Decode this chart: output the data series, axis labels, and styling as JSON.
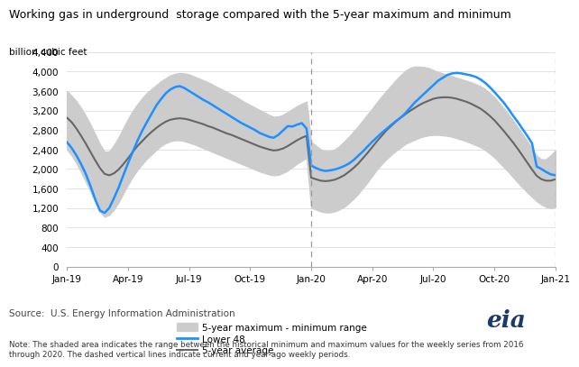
{
  "title": "Working gas in underground  storage compared with the 5-year maximum and minimum",
  "ylabel": "billion cubic feet",
  "source_text": "Source:  U.S. Energy Information Administration",
  "note_text": "Note: The shaded area indicates the range between the historical minimum and maximum values for the weekly series from 2016\nthrough 2020. The dashed vertical lines indicate current and year-ago weekly periods.",
  "ylim": [
    0,
    4400
  ],
  "yticks": [
    0,
    400,
    800,
    1200,
    1600,
    2000,
    2400,
    2800,
    3200,
    3600,
    4000,
    4400
  ],
  "x_labels": [
    "Jan-19",
    "Apr-19",
    "Jul-19",
    "Oct-19",
    "Jan-20",
    "Apr-20",
    "Jul-20",
    "Oct-20",
    "Jan-21"
  ],
  "x_tick_positions": [
    0,
    13,
    26,
    39,
    52,
    65,
    78,
    91,
    104
  ],
  "dashed_vlines_x": [
    52,
    104
  ],
  "shaded_color": "#cccccc",
  "lower48_color": "#1e90ff",
  "avg5yr_color": "#666666",
  "n_points": 105,
  "lower48": [
    2550,
    2430,
    2280,
    2100,
    1900,
    1650,
    1380,
    1150,
    1100,
    1200,
    1400,
    1620,
    1870,
    2120,
    2350,
    2580,
    2780,
    2960,
    3130,
    3300,
    3430,
    3550,
    3630,
    3680,
    3700,
    3660,
    3600,
    3540,
    3480,
    3420,
    3370,
    3310,
    3250,
    3190,
    3130,
    3070,
    3010,
    2950,
    2900,
    2850,
    2800,
    2740,
    2700,
    2660,
    2640,
    2700,
    2790,
    2880,
    2870,
    2910,
    2940,
    2830,
    2070,
    2020,
    1980,
    1960,
    1970,
    1990,
    2020,
    2060,
    2110,
    2180,
    2270,
    2360,
    2460,
    2560,
    2650,
    2740,
    2820,
    2900,
    2980,
    3050,
    3140,
    3250,
    3360,
    3450,
    3540,
    3630,
    3720,
    3810,
    3870,
    3930,
    3960,
    3970,
    3960,
    3940,
    3920,
    3890,
    3840,
    3770,
    3680,
    3580,
    3470,
    3360,
    3230,
    3090,
    2960,
    2820,
    2680,
    2530,
    2050,
    2000,
    1940,
    1890,
    1870
  ],
  "avg5yr": [
    3050,
    2960,
    2830,
    2680,
    2520,
    2350,
    2180,
    2020,
    1900,
    1870,
    1910,
    1990,
    2100,
    2220,
    2350,
    2470,
    2570,
    2670,
    2760,
    2840,
    2910,
    2970,
    3010,
    3030,
    3040,
    3030,
    3010,
    2980,
    2950,
    2920,
    2880,
    2850,
    2810,
    2770,
    2730,
    2700,
    2660,
    2620,
    2580,
    2540,
    2500,
    2460,
    2430,
    2400,
    2380,
    2390,
    2420,
    2470,
    2530,
    2590,
    2640,
    2680,
    1820,
    1790,
    1760,
    1750,
    1760,
    1780,
    1820,
    1870,
    1940,
    2020,
    2110,
    2220,
    2330,
    2450,
    2570,
    2680,
    2790,
    2880,
    2970,
    3050,
    3120,
    3190,
    3250,
    3310,
    3360,
    3400,
    3440,
    3460,
    3470,
    3470,
    3460,
    3440,
    3410,
    3380,
    3340,
    3290,
    3240,
    3170,
    3090,
    3000,
    2890,
    2780,
    2660,
    2540,
    2410,
    2270,
    2130,
    1990,
    1860,
    1790,
    1760,
    1760,
    1790
  ],
  "range_max": [
    3600,
    3500,
    3390,
    3250,
    3090,
    2910,
    2710,
    2510,
    2350,
    2360,
    2490,
    2650,
    2840,
    3030,
    3190,
    3330,
    3450,
    3560,
    3640,
    3720,
    3800,
    3860,
    3920,
    3950,
    3970,
    3960,
    3940,
    3900,
    3860,
    3820,
    3780,
    3730,
    3680,
    3630,
    3580,
    3530,
    3480,
    3420,
    3360,
    3310,
    3260,
    3210,
    3160,
    3110,
    3070,
    3080,
    3110,
    3170,
    3230,
    3290,
    3340,
    3380,
    2550,
    2480,
    2400,
    2370,
    2370,
    2400,
    2470,
    2560,
    2660,
    2770,
    2880,
    3000,
    3120,
    3240,
    3370,
    3490,
    3600,
    3710,
    3820,
    3920,
    4010,
    4070,
    4100,
    4100,
    4090,
    4070,
    4030,
    3990,
    3960,
    3930,
    3900,
    3870,
    3840,
    3810,
    3780,
    3740,
    3700,
    3640,
    3560,
    3470,
    3360,
    3240,
    3120,
    2990,
    2850,
    2710,
    2570,
    2420,
    2270,
    2200,
    2200,
    2280,
    2380
  ],
  "range_min": [
    2400,
    2280,
    2120,
    1940,
    1740,
    1540,
    1330,
    1120,
    1020,
    1060,
    1170,
    1320,
    1500,
    1680,
    1840,
    1980,
    2100,
    2210,
    2300,
    2390,
    2470,
    2530,
    2570,
    2590,
    2590,
    2570,
    2540,
    2510,
    2470,
    2430,
    2390,
    2350,
    2310,
    2270,
    2230,
    2190,
    2150,
    2110,
    2070,
    2030,
    1990,
    1950,
    1920,
    1890,
    1870,
    1880,
    1920,
    1970,
    2040,
    2110,
    2170,
    2230,
    1200,
    1170,
    1130,
    1110,
    1110,
    1130,
    1170,
    1220,
    1300,
    1390,
    1490,
    1610,
    1730,
    1860,
    1990,
    2100,
    2200,
    2290,
    2370,
    2440,
    2510,
    2560,
    2600,
    2640,
    2670,
    2690,
    2700,
    2700,
    2690,
    2680,
    2660,
    2630,
    2600,
    2570,
    2530,
    2490,
    2450,
    2390,
    2320,
    2240,
    2140,
    2040,
    1940,
    1830,
    1720,
    1620,
    1520,
    1430,
    1340,
    1270,
    1220,
    1200,
    1220
  ]
}
